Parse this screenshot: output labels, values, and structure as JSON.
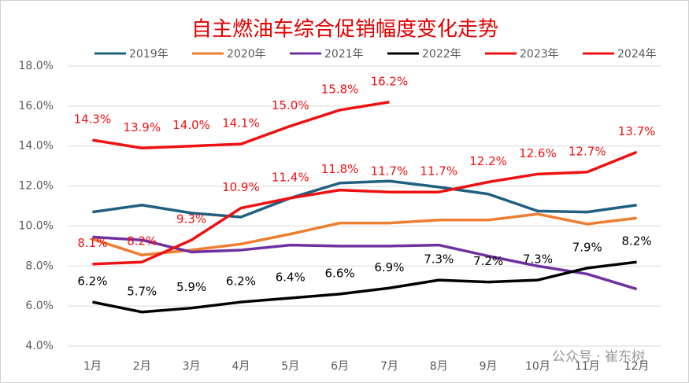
{
  "chart_data": {
    "type": "line",
    "title": "自主燃油车综合促销幅度变化走势",
    "categories": [
      "1月",
      "2月",
      "3月",
      "4月",
      "5月",
      "6月",
      "7月",
      "8月",
      "9月",
      "10月",
      "11月",
      "12月"
    ],
    "series": [
      {
        "name": "2019年",
        "color": "#1f5f7f",
        "values": [
          10.7,
          11.05,
          10.65,
          10.45,
          11.4,
          12.15,
          12.25,
          11.95,
          11.6,
          10.75,
          10.7,
          11.05
        ]
      },
      {
        "name": "2020年",
        "color": "#ed7d31",
        "values": [
          9.35,
          8.55,
          8.8,
          9.1,
          9.6,
          10.15,
          10.15,
          10.3,
          10.3,
          10.6,
          10.1,
          10.4
        ]
      },
      {
        "name": "2021年",
        "color": "#7030a0",
        "values": [
          9.45,
          9.3,
          8.7,
          8.8,
          9.05,
          9.0,
          9.0,
          9.05,
          8.5,
          8.0,
          7.6,
          6.85
        ]
      },
      {
        "name": "2022年",
        "color": "#000000",
        "values": [
          6.2,
          5.7,
          5.9,
          6.2,
          6.4,
          6.6,
          6.9,
          7.3,
          7.2,
          7.3,
          7.9,
          8.2
        ],
        "value_labels": [
          "6.2%",
          "5.7%",
          "5.9%",
          "6.2%",
          "6.4%",
          "6.6%",
          "6.9%",
          "7.3%",
          "7.2%",
          "7.3%",
          "7.9%",
          "8.2%"
        ]
      },
      {
        "name": "2023年",
        "color": "#ee1111",
        "values": [
          8.1,
          8.2,
          9.3,
          10.9,
          11.4,
          11.8,
          11.7,
          11.7,
          12.2,
          12.6,
          12.7,
          13.7
        ],
        "value_labels": [
          "8.1%",
          "8.2%",
          "9.3%",
          "10.9%",
          "11.4%",
          "11.8%",
          "11.7%",
          "11.7%",
          "12.2%",
          "12.6%",
          "12.7%",
          "13.7%"
        ]
      },
      {
        "name": "2024年",
        "color": "#ee1111",
        "values": [
          14.3,
          13.9,
          14.0,
          14.1,
          15.0,
          15.8,
          16.2,
          null,
          null,
          null,
          null,
          null
        ],
        "value_labels": [
          "14.3%",
          "13.9%",
          "14.0%",
          "14.1%",
          "15.0%",
          "15.8%",
          "16.2%",
          null,
          null,
          null,
          null,
          null
        ]
      }
    ],
    "ylim": [
      4,
      18
    ],
    "yticks": [
      {
        "value": 4,
        "label": "4.0%"
      },
      {
        "value": 6,
        "label": "6.0%"
      },
      {
        "value": 8,
        "label": "8.0%"
      },
      {
        "value": 10,
        "label": "10.0%"
      },
      {
        "value": 12,
        "label": "12.0%"
      },
      {
        "value": 14,
        "label": "14.0%"
      },
      {
        "value": 16,
        "label": "16.0%"
      },
      {
        "value": 18,
        "label": "18.0%"
      }
    ],
    "grid": true,
    "legend": "top",
    "watermark": "公众号 · 崔东树"
  }
}
